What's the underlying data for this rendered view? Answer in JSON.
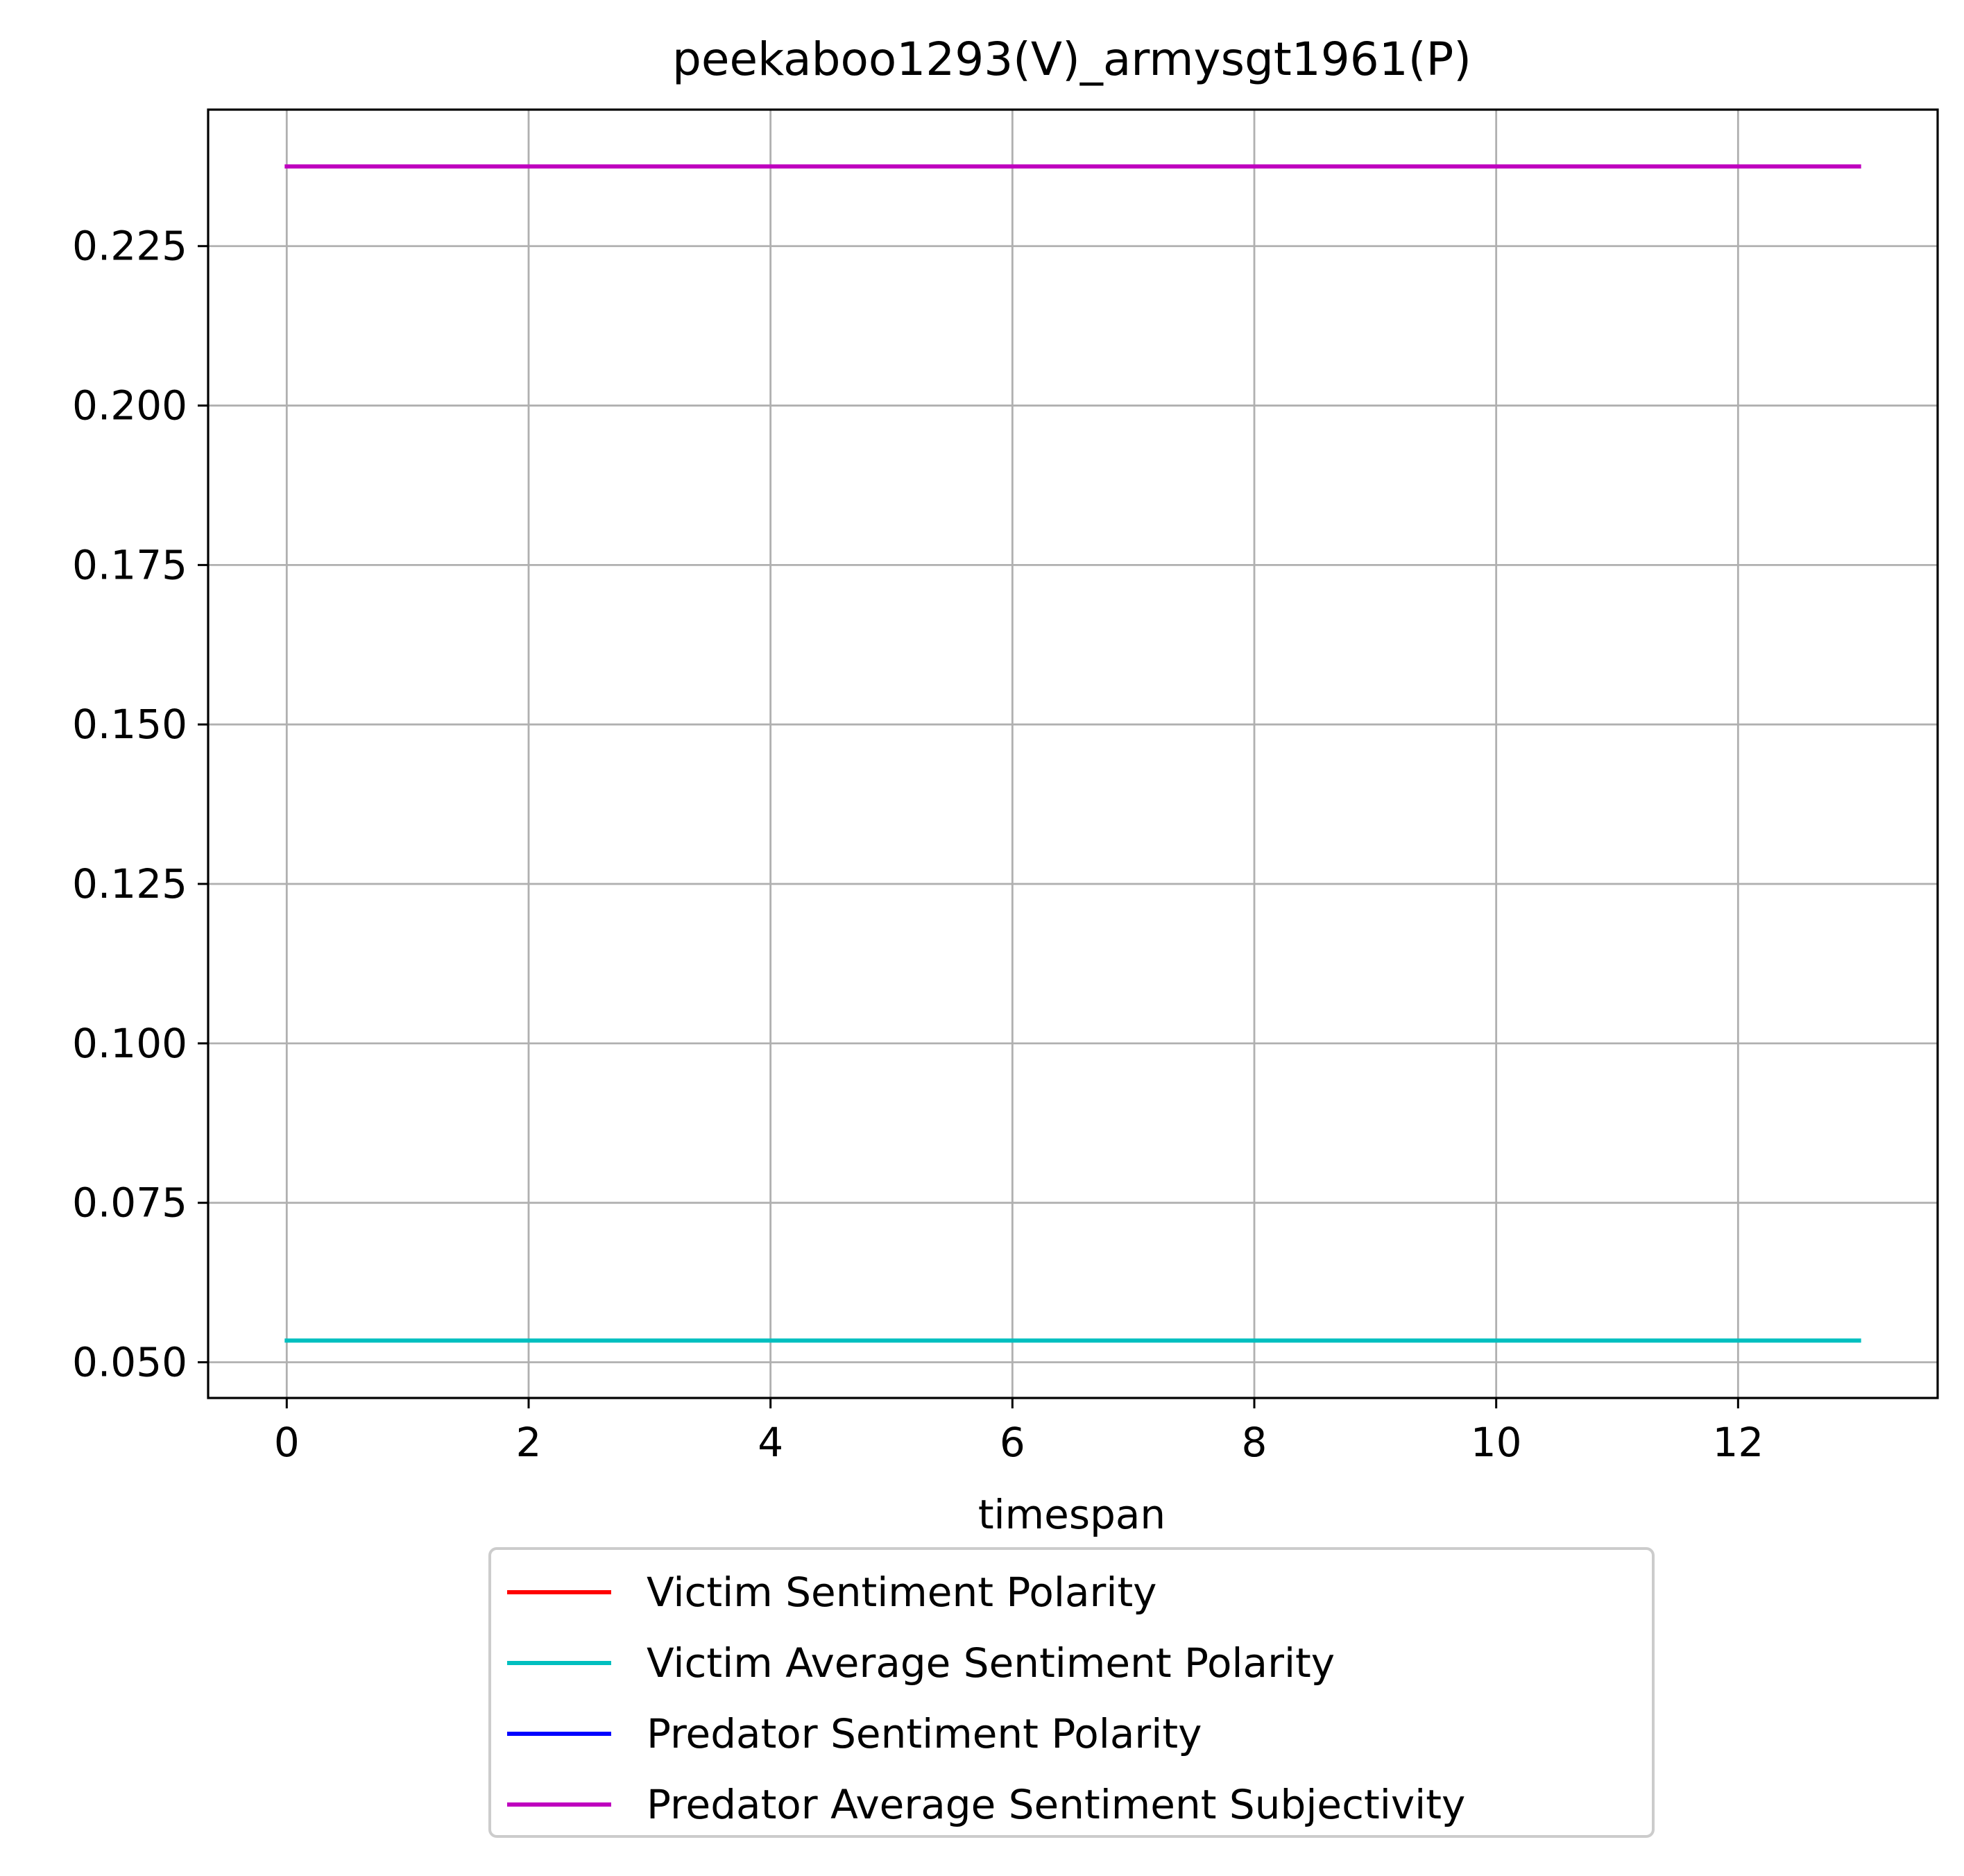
{
  "chart_data": {
    "type": "line",
    "title": "peekaboo1293(V)_armysgt1961(P)",
    "xlabel": "timespan",
    "ylabel": "",
    "x_ticks": [
      0,
      2,
      4,
      6,
      8,
      10,
      12
    ],
    "x_tick_labels": [
      "0",
      "2",
      "4",
      "6",
      "8",
      "10",
      "12"
    ],
    "y_ticks": [
      0.05,
      0.075,
      0.1,
      0.125,
      0.15,
      0.175,
      0.2,
      0.225
    ],
    "y_tick_labels": [
      "0.050",
      "0.075",
      "0.100",
      "0.125",
      "0.150",
      "0.175",
      "0.200",
      "0.225"
    ],
    "xlim": [
      -0.65,
      13.65
    ],
    "ylim": [
      0.0444,
      0.2464
    ],
    "grid": true,
    "legend_position": "below-center",
    "series": [
      {
        "name": "Victim Sentiment Polarity",
        "color": "#ff0000",
        "x": [],
        "y": []
      },
      {
        "name": "Victim Average Sentiment Polarity",
        "color": "#00bfbf",
        "x": [
          0,
          1,
          2,
          3,
          4,
          5,
          6,
          7,
          8,
          9,
          10,
          11,
          12,
          13
        ],
        "y": [
          0.0534,
          0.0534,
          0.0534,
          0.0534,
          0.0534,
          0.0534,
          0.0534,
          0.0534,
          0.0534,
          0.0534,
          0.0534,
          0.0534,
          0.0534,
          0.0534
        ]
      },
      {
        "name": "Predator Sentiment Polarity",
        "color": "#0000ff",
        "x": [],
        "y": []
      },
      {
        "name": "Predator Average Sentiment Subjectivity",
        "color": "#bf00bf",
        "x": [
          0,
          1,
          2,
          3,
          4,
          5,
          6,
          7,
          8,
          9,
          10,
          11,
          12,
          13
        ],
        "y": [
          0.2375,
          0.2375,
          0.2375,
          0.2375,
          0.2375,
          0.2375,
          0.2375,
          0.2375,
          0.2375,
          0.2375,
          0.2375,
          0.2375,
          0.2375,
          0.2375
        ]
      }
    ]
  }
}
